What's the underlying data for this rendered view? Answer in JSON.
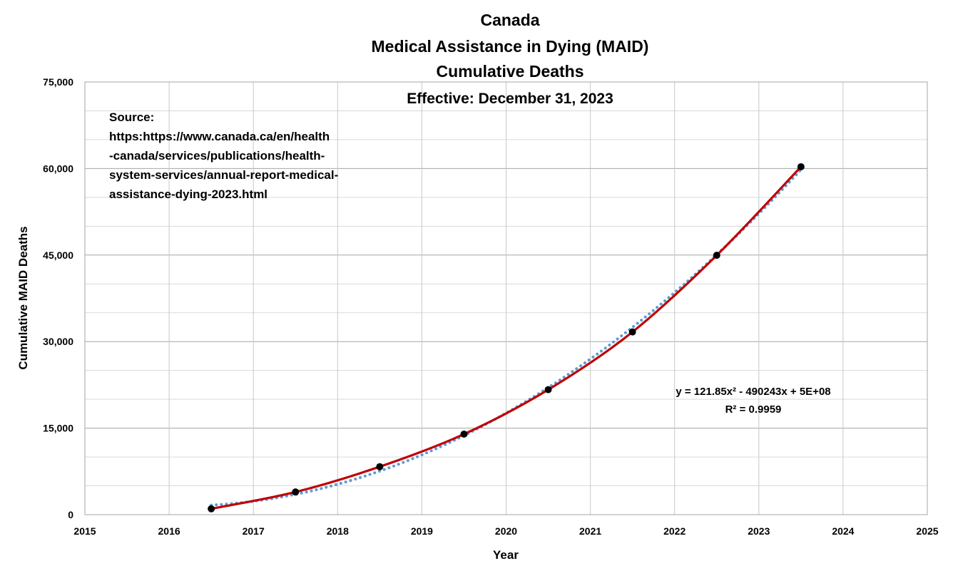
{
  "chart_data": {
    "type": "line",
    "title_lines": [
      "Canada",
      "Medical Assistance in Dying (MAID)",
      "Cumulative Deaths"
    ],
    "subtitle": "Effective: December 31, 2023",
    "xlabel": "Year",
    "ylabel": "Cumulative MAID Deaths",
    "xlim": [
      2015,
      2025
    ],
    "ylim": [
      0,
      75000
    ],
    "x_ticks": [
      "2015",
      "2016",
      "2017",
      "2018",
      "2019",
      "2020",
      "2021",
      "2022",
      "2023",
      "2024",
      "2025"
    ],
    "y_ticks": [
      "0",
      "15,000",
      "30,000",
      "45,000",
      "60,000",
      "75,000"
    ],
    "y_tick_values": [
      0,
      15000,
      30000,
      45000,
      60000,
      75000
    ],
    "grid": true,
    "source_lines": [
      "Source:",
      "https:https://www.canada.ca/en/health",
      "-canada/services/publications/health-",
      "system-services/annual-report-medical-",
      "assistance-dying-2023.html"
    ],
    "series": [
      {
        "x": [
          2016.5,
          2017.5,
          2018.5,
          2019.5,
          2020.5,
          2021.5,
          2022.5,
          2023.5
        ],
        "values": [
          1018,
          3932,
          8316,
          13962,
          21667,
          31674,
          44958,
          60301
        ],
        "color": "#c00000",
        "marker_color": "#000000"
      }
    ],
    "trendline": {
      "type": "polynomial-2",
      "equation": "y = 121.85x² - 490243x + 5E+08",
      "r_squared": "R² = 0.9959",
      "color": "#5b9bd5",
      "style": "dotted"
    }
  }
}
